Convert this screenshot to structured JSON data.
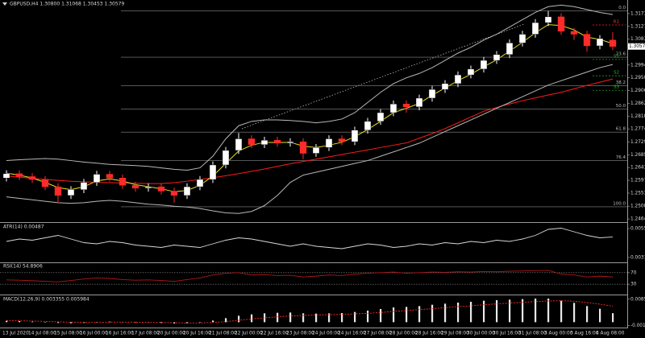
{
  "chart_data": [
    {
      "type": "candlestick",
      "title": "GBPUSD,H4 1.30800 1.31068 1.30453 1.30579",
      "categories": [
        "13 Jul 2020",
        null,
        "14 Jul 08:00",
        null,
        "15 Jul 08:00",
        null,
        "16 Jul 00:00",
        null,
        "16 Jul 16:00",
        null,
        "17 Jul 08:00",
        null,
        "20 Jul 00:00",
        null,
        "20 Jul 16:00",
        null,
        "21 Jul 08:00",
        null,
        "22 Jul 00:00",
        null,
        "22 Jul 16:00",
        null,
        "23 Jul 08:00",
        null,
        "24 Jul 00:00",
        null,
        "24 Jul 16:00",
        null,
        "27 Jul 08:00",
        null,
        "28 Jul 00:00",
        null,
        "28 Jul 16:00",
        null,
        "29 Jul 08:00",
        null,
        "30 Jul 00:00",
        null,
        "30 Jul 16:00",
        null,
        "31 Jul 08:00",
        null,
        "3 Aug 00:00",
        null,
        "3 Aug 16:00",
        null,
        "4 Aug 08:00",
        null
      ],
      "open": [
        1.2605,
        1.262,
        1.261,
        1.26,
        1.2575,
        1.2545,
        1.2565,
        1.259,
        1.2618,
        1.2605,
        1.258,
        1.257,
        1.2575,
        1.256,
        1.2545,
        1.2575,
        1.26,
        1.265,
        1.27,
        1.274,
        1.272,
        1.2735,
        1.2725,
        1.273,
        1.269,
        1.271,
        1.274,
        1.273,
        1.277,
        1.28,
        1.283,
        1.286,
        1.285,
        1.288,
        1.291,
        1.293,
        1.296,
        1.298,
        1.301,
        1.303,
        1.307,
        1.31,
        1.314,
        1.316,
        1.311,
        1.31,
        1.306,
        1.308
      ],
      "high": [
        1.2632,
        1.2632,
        1.2622,
        1.2612,
        1.2587,
        1.2577,
        1.2602,
        1.263,
        1.263,
        1.2617,
        1.2592,
        1.2587,
        1.2587,
        1.2572,
        1.2587,
        1.2612,
        1.2662,
        1.2712,
        1.276,
        1.2752,
        1.2747,
        1.2747,
        1.2742,
        1.2742,
        1.2722,
        1.2752,
        1.2752,
        1.2782,
        1.2812,
        1.2842,
        1.2872,
        1.2872,
        1.2892,
        1.2922,
        1.2942,
        1.2972,
        1.2992,
        1.3022,
        1.3042,
        1.3082,
        1.3112,
        1.3152,
        1.318,
        1.3172,
        1.3122,
        1.3112,
        1.3097,
        1.31068
      ],
      "low": [
        1.2593,
        1.2598,
        1.2588,
        1.2563,
        1.2518,
        1.2533,
        1.2553,
        1.2578,
        1.2593,
        1.2568,
        1.2558,
        1.2558,
        1.2548,
        1.252,
        1.2533,
        1.2563,
        1.2588,
        1.2638,
        1.2688,
        1.2708,
        1.2708,
        1.2713,
        1.2713,
        1.267,
        1.2678,
        1.2698,
        1.2718,
        1.2718,
        1.2758,
        1.2788,
        1.2818,
        1.283,
        1.2838,
        1.2868,
        1.2898,
        1.2918,
        1.2948,
        1.2968,
        1.2998,
        1.3018,
        1.3058,
        1.3088,
        1.3128,
        1.3098,
        1.308,
        1.304,
        1.3048,
        1.30453
      ],
      "close": [
        1.262,
        1.261,
        1.26,
        1.2575,
        1.2545,
        1.2565,
        1.259,
        1.2618,
        1.2605,
        1.258,
        1.257,
        1.2575,
        1.256,
        1.2545,
        1.2575,
        1.26,
        1.265,
        1.27,
        1.274,
        1.272,
        1.2735,
        1.2725,
        1.273,
        1.269,
        1.271,
        1.274,
        1.273,
        1.277,
        1.28,
        1.283,
        1.286,
        1.285,
        1.288,
        1.291,
        1.293,
        1.296,
        1.298,
        1.301,
        1.303,
        1.307,
        1.31,
        1.314,
        1.316,
        1.311,
        1.31,
        1.306,
        1.3085,
        1.30579
      ],
      "up_color": "#ffffff",
      "down_color": "#ff2a2a",
      "lines": [
        {
          "color": "#ff1a1a",
          "values": [
            1.2612,
            1.2608,
            1.2604,
            1.26,
            1.2597,
            1.2594,
            1.2592,
            1.259,
            1.2589,
            1.2588,
            1.2587,
            1.2586,
            1.2586,
            1.2589,
            1.2594,
            1.26,
            1.2606,
            1.2613,
            1.262,
            1.2628,
            1.2636,
            1.2645,
            1.2654,
            1.2662,
            1.267,
            1.2678,
            1.2686,
            1.2694,
            1.2702,
            1.271,
            1.2718,
            1.2726,
            1.2742,
            1.2758,
            1.2775,
            1.2795,
            1.2815,
            1.2835,
            1.2848,
            1.286,
            1.2871,
            1.2881,
            1.2891,
            1.29,
            1.2912,
            1.2924,
            1.2935,
            1.2946
          ]
        },
        {
          "color": "#b8b8b8",
          "values": [
            1.2665,
            1.2668,
            1.267,
            1.2672,
            1.267,
            1.2665,
            1.266,
            1.2656,
            1.2652,
            1.265,
            1.2648,
            1.2645,
            1.264,
            1.2635,
            1.2632,
            1.264,
            1.268,
            1.274,
            1.2785,
            1.28,
            1.2805,
            1.2805,
            1.2803,
            1.28,
            1.2795,
            1.28,
            1.2808,
            1.283,
            1.2865,
            1.29,
            1.293,
            1.295,
            1.2965,
            1.2985,
            1.301,
            1.3035,
            1.3055,
            1.308,
            1.31,
            1.3125,
            1.315,
            1.3175,
            1.3195,
            1.32,
            1.3195,
            1.3185,
            1.3175,
            1.3168
          ]
        },
        {
          "color": "#b8b8b8",
          "values": [
            1.254,
            1.2535,
            1.253,
            1.2525,
            1.252,
            1.2518,
            1.252,
            1.2525,
            1.2528,
            1.2525,
            1.252,
            1.2515,
            1.2512,
            1.2508,
            1.2505,
            1.25,
            1.2492,
            1.2485,
            1.2483,
            1.249,
            1.251,
            1.2545,
            1.259,
            1.2615,
            1.2625,
            1.2635,
            1.2645,
            1.2655,
            1.2665,
            1.268,
            1.2695,
            1.271,
            1.2725,
            1.2745,
            1.2765,
            1.2785,
            1.2805,
            1.2825,
            1.2845,
            1.2865,
            1.2885,
            1.2905,
            1.2925,
            1.294,
            1.2955,
            1.297,
            1.2985,
            1.2996
          ]
        },
        {
          "color": "#e8e020",
          "values": [
            1.2622,
            1.2615,
            1.2605,
            1.259,
            1.2572,
            1.2565,
            1.2575,
            1.2595,
            1.2602,
            1.2595,
            1.2582,
            1.2575,
            1.2568,
            1.2558,
            1.2562,
            1.258,
            1.2612,
            1.2655,
            1.2698,
            1.2718,
            1.2728,
            1.2727,
            1.2728,
            1.2715,
            1.271,
            1.2718,
            1.2728,
            1.2747,
            1.2772,
            1.28,
            1.283,
            1.2845,
            1.2862,
            1.289,
            1.2915,
            1.294,
            1.2962,
            1.2988,
            1.3012,
            1.3042,
            1.3072,
            1.3105,
            1.3133,
            1.313,
            1.3115,
            1.309,
            1.3082,
            1.3068
          ]
        }
      ],
      "ylim": [
        1.2456,
        1.3204
      ],
      "yticks": [
        {
          "value": 1.3171,
          "label": "1.31710"
        },
        {
          "value": 1.3127,
          "label": "1.31270"
        },
        {
          "value": 1.3083,
          "label": "1.30830"
        },
        {
          "value": 1.2994,
          "label": "1.29940"
        },
        {
          "value": 1.295,
          "label": "1.29500"
        },
        {
          "value": 1.2906,
          "label": "1.29060"
        },
        {
          "value": 1.2862,
          "label": "1.28620"
        },
        {
          "value": 1.2818,
          "label": "1.28180"
        },
        {
          "value": 1.2774,
          "label": "1.27740"
        },
        {
          "value": 1.2729,
          "label": "1.27290"
        },
        {
          "value": 1.2685,
          "label": "1.26850"
        },
        {
          "value": 1.2641,
          "label": "1.26410"
        },
        {
          "value": 1.2597,
          "label": "1.25970"
        },
        {
          "value": 1.2553,
          "label": "1.25530"
        },
        {
          "value": 1.2508,
          "label": "1.25080"
        },
        {
          "value": 1.2464,
          "label": "1.24640"
        }
      ],
      "last_price_label": "1.30579",
      "fib_levels": [
        {
          "value": 1.318,
          "label": "0.0"
        },
        {
          "value": 1.3021,
          "label": "23.6"
        },
        {
          "value": 1.2923,
          "label": "38.2"
        },
        {
          "value": 1.2843,
          "label": "50.0"
        },
        {
          "value": 1.2763,
          "label": "61.8"
        },
        {
          "value": 1.2665,
          "label": "76.4"
        },
        {
          "value": 1.2506,
          "label": "100.0"
        }
      ],
      "pivots": [
        {
          "value": 1.3132,
          "label": "R1",
          "color": "#ff2a2a"
        },
        {
          "value": 1.3013,
          "label": "S1",
          "color": "#22c022"
        },
        {
          "value": 1.2957,
          "label": "S2",
          "color": "#22c022"
        },
        {
          "value": 1.2907,
          "label": "S3",
          "color": "#22c022"
        }
      ]
    },
    {
      "type": "line",
      "title": "ATR(14) 0.00487",
      "color": "#d8d8d8",
      "values": [
        0.0045,
        0.0047,
        0.0046,
        0.0048,
        0.005,
        0.0047,
        0.0044,
        0.0043,
        0.0045,
        0.0044,
        0.0042,
        0.0041,
        0.004,
        0.0042,
        0.0041,
        0.004,
        0.0043,
        0.0046,
        0.0048,
        0.0047,
        0.0045,
        0.0043,
        0.0041,
        0.0043,
        0.0041,
        0.004,
        0.0039,
        0.0041,
        0.0043,
        0.0042,
        0.004,
        0.0041,
        0.0043,
        0.0042,
        0.0044,
        0.0043,
        0.0045,
        0.0044,
        0.0046,
        0.0045,
        0.0047,
        0.005,
        0.0055,
        0.0056,
        0.0053,
        0.005,
        0.0048,
        0.00487
      ],
      "ylim": [
        0.0029,
        0.0059
      ],
      "yticks": [
        0.00556,
        0.00317
      ]
    },
    {
      "type": "line",
      "title": "RSI(14) 54.8906",
      "color": "#b01818",
      "values": [
        45,
        44,
        42,
        40,
        38,
        43,
        48,
        52,
        50,
        46,
        44,
        45,
        43,
        40,
        46,
        52,
        62,
        68,
        70,
        62,
        63,
        60,
        61,
        55,
        58,
        62,
        60,
        65,
        68,
        70,
        72,
        68,
        70,
        72,
        71,
        73,
        72,
        74,
        73,
        75,
        76,
        77,
        78,
        65,
        62,
        55,
        58,
        54.8906
      ],
      "ylim": [
        0,
        100
      ],
      "yticks": [
        70,
        30
      ],
      "grid": true
    },
    {
      "type": "bar",
      "title": "MACD(12,26,9) 0.003355 0.005984",
      "color": "#e8e8e8",
      "values": [
        0.0005,
        0.0004,
        0.0002,
        0.0,
        -0.0003,
        -0.0004,
        -0.0003,
        0.0,
        0.0002,
        0.0001,
        -0.0001,
        -0.0002,
        -0.0003,
        -0.0005,
        -0.0004,
        -0.0001,
        0.0006,
        0.0015,
        0.0024,
        0.0029,
        0.0033,
        0.0035,
        0.0036,
        0.0033,
        0.0032,
        0.0033,
        0.0034,
        0.0038,
        0.0043,
        0.0049,
        0.0055,
        0.0057,
        0.006,
        0.0065,
        0.0069,
        0.0073,
        0.0076,
        0.008,
        0.0082,
        0.0084,
        0.0086,
        0.0088,
        0.0088,
        0.008,
        0.0072,
        0.006,
        0.005,
        0.003355
      ],
      "signal": {
        "color": "#ff2a2a",
        "values": [
          0.0006,
          0.0005,
          0.0004,
          0.0003,
          0.0001,
          0.0,
          -0.0001,
          -0.0001,
          0.0,
          0.0,
          0.0,
          -0.0001,
          -0.0001,
          -0.0002,
          -0.0003,
          -0.0003,
          -0.0001,
          0.0002,
          0.0007,
          0.0012,
          0.0016,
          0.002,
          0.0023,
          0.0025,
          0.0027,
          0.0028,
          0.0029,
          0.0031,
          0.0033,
          0.0036,
          0.004,
          0.0043,
          0.0047,
          0.005,
          0.0054,
          0.0058,
          0.0061,
          0.0065,
          0.0068,
          0.0071,
          0.0074,
          0.0077,
          0.0079,
          0.008,
          0.0078,
          0.0073,
          0.0067,
          0.005984
        ]
      },
      "ylim": [
        -0.0014,
        0.0094
      ],
      "yticks": [
        0.008563,
        -0.001283
      ]
    }
  ]
}
